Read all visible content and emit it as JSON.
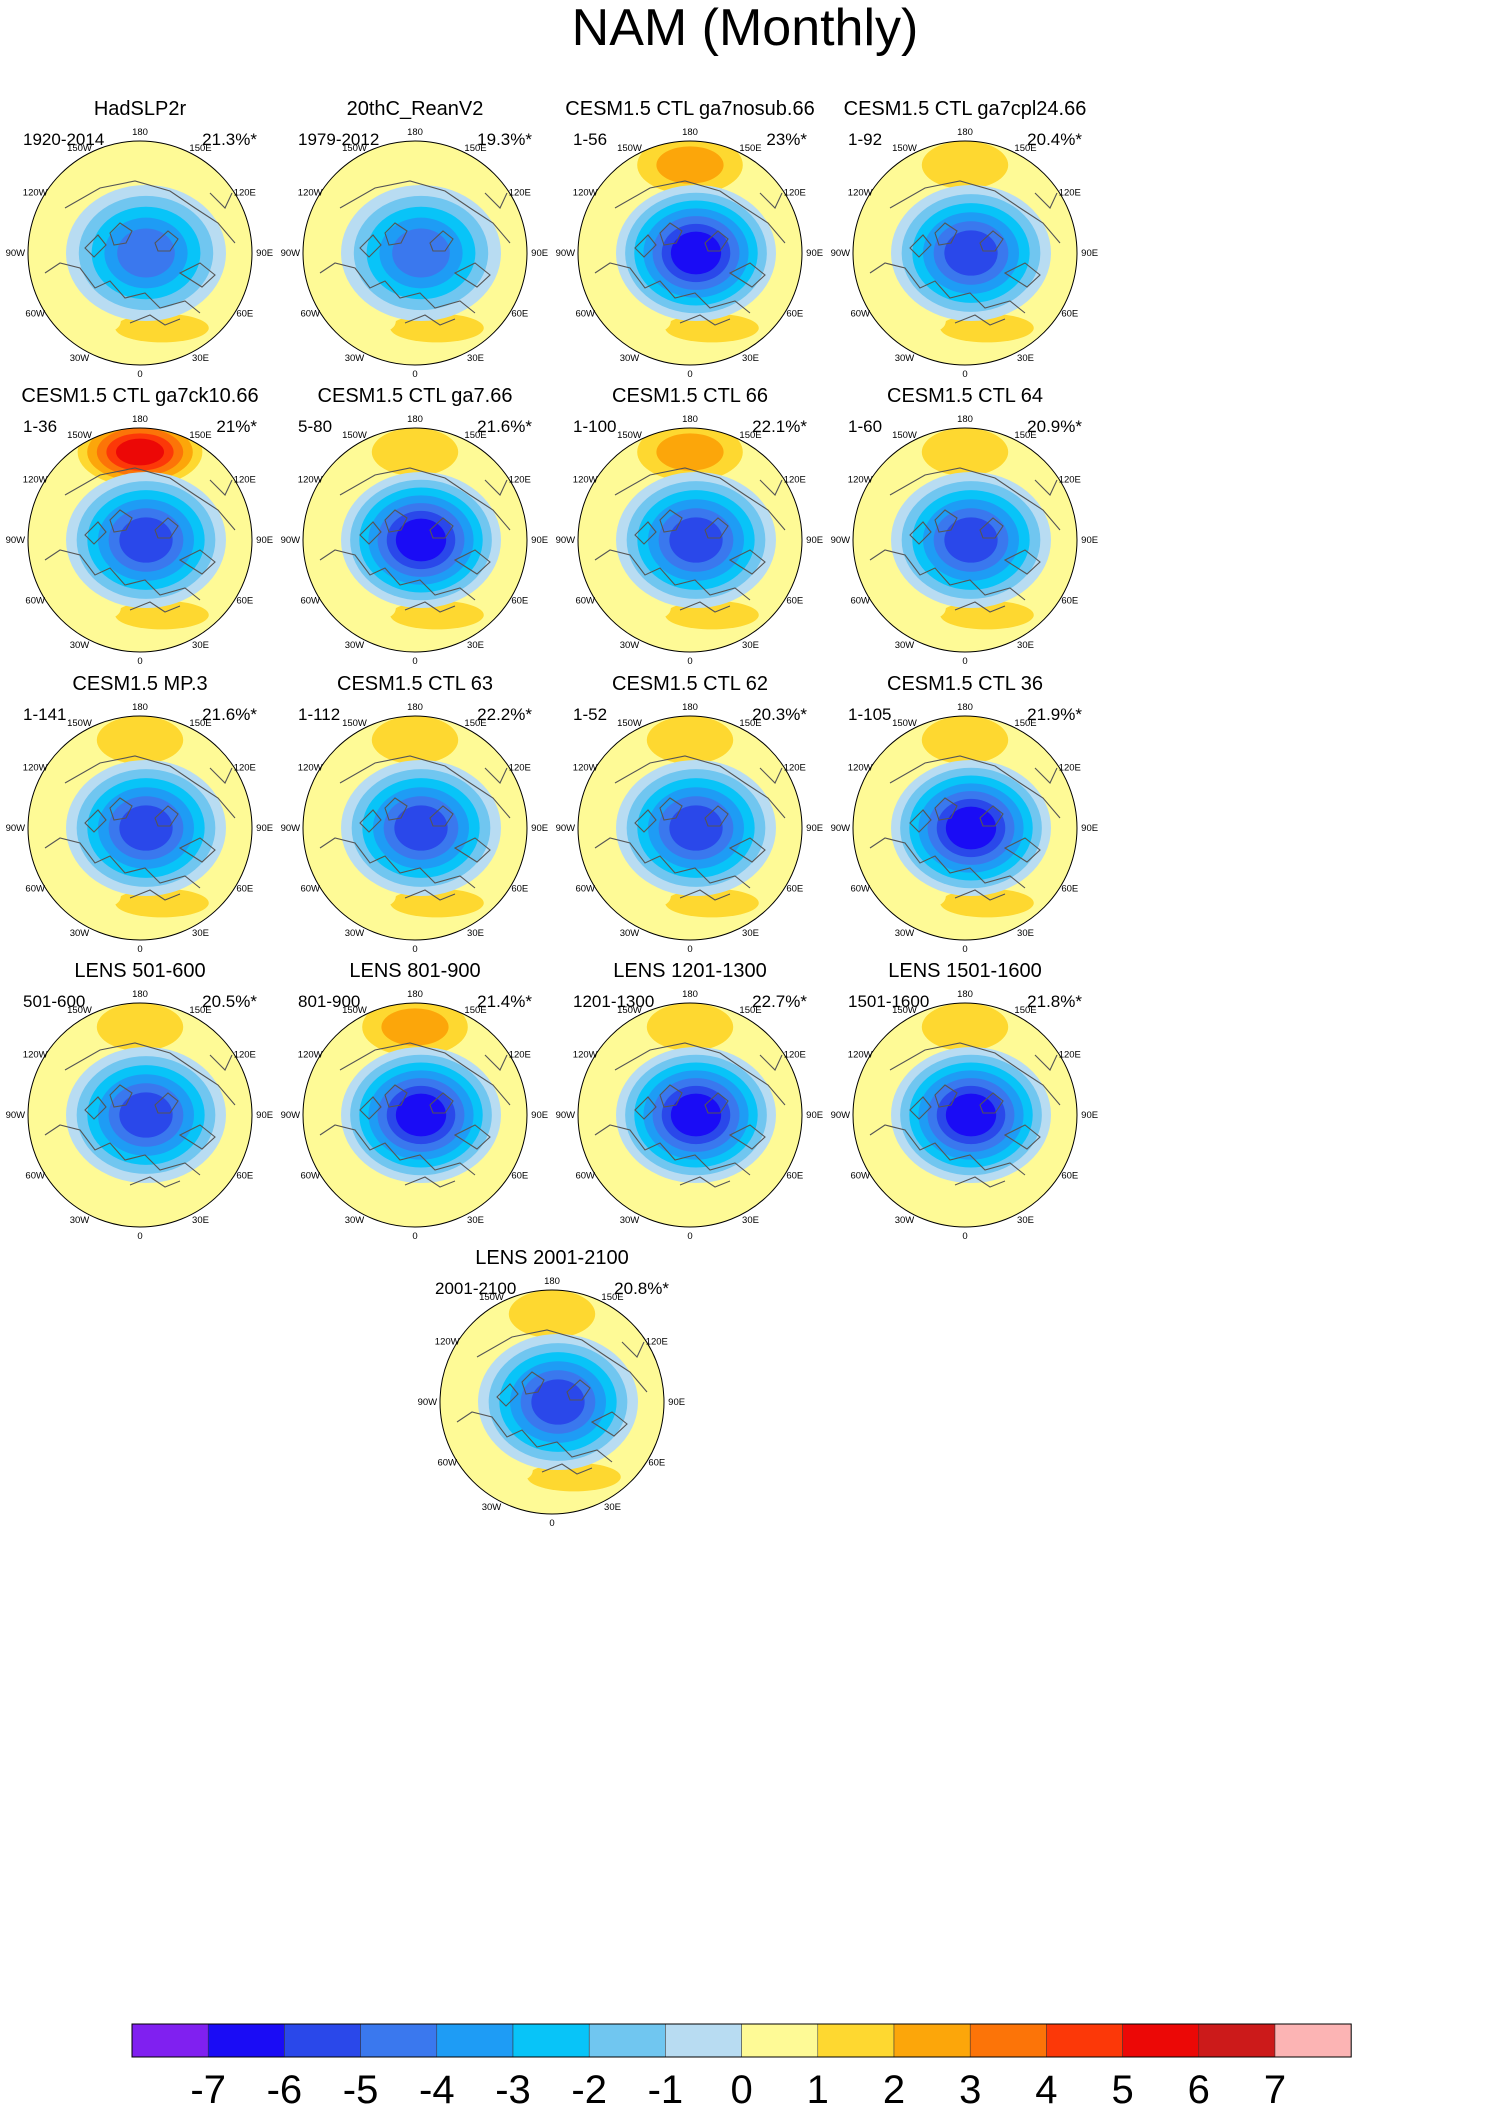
{
  "chart_data": {
    "type": "polar-contour-map",
    "title": "NAM (Monthly)",
    "projection": "North polar stereographic",
    "longitude_labels": [
      "180",
      "150E",
      "120E",
      "90E",
      "60E",
      "30E",
      "0",
      "30W",
      "60W",
      "90W",
      "120W",
      "150W"
    ],
    "colorbar": {
      "labels": [
        "-7",
        "-6",
        "-5",
        "-4",
        "-3",
        "-2",
        "-1",
        "0",
        "1",
        "2",
        "3",
        "4",
        "5",
        "6",
        "7"
      ],
      "colors": [
        "#8020f0",
        "#1a0cf5",
        "#2a48ea",
        "#3a78ee",
        "#1e9cf5",
        "#08c4f8",
        "#70c6f0",
        "#b8dcf2",
        "#fefa96",
        "#fed830",
        "#fca60a",
        "#fc7408",
        "#fc3808",
        "#ec0806",
        "#cc1a1a",
        "#fcb4b4"
      ]
    },
    "panels": [
      {
        "title": "HadSLP2r",
        "period": "1920-2014",
        "variance": "21.3%*",
        "pacific_high": 0,
        "atlantic_high": 2,
        "low": 4
      },
      {
        "title": "20thC_ReanV2",
        "period": "1979-2012",
        "variance": "19.3%*",
        "pacific_high": 1,
        "atlantic_high": 2,
        "low": 4
      },
      {
        "title": "CESM1.5 CTL ga7nosub.66",
        "period": "1-56",
        "variance": "23%*",
        "pacific_high": 3,
        "atlantic_high": 2,
        "low": 6
      },
      {
        "title": "CESM1.5 CTL ga7cpl24.66",
        "period": "1-92",
        "variance": "20.4%*",
        "pacific_high": 2,
        "atlantic_high": 2,
        "low": 5
      },
      {
        "title": "CESM1.5 CTL ga7ck10.66",
        "period": "1-36",
        "variance": "21%*",
        "pacific_high": 6,
        "atlantic_high": 2,
        "low": 5
      },
      {
        "title": "CESM1.5 CTL ga7.66",
        "period": "5-80",
        "variance": "21.6%*",
        "pacific_high": 2,
        "atlantic_high": 2,
        "low": 6
      },
      {
        "title": "CESM1.5 CTL 66",
        "period": "1-100",
        "variance": "22.1%*",
        "pacific_high": 3,
        "atlantic_high": 2,
        "low": 5
      },
      {
        "title": "CESM1.5 CTL 64",
        "period": "1-60",
        "variance": "20.9%*",
        "pacific_high": 2,
        "atlantic_high": 2,
        "low": 5
      },
      {
        "title": "CESM1.5 MP.3",
        "period": "1-141",
        "variance": "21.6%*",
        "pacific_high": 2,
        "atlantic_high": 2,
        "low": 5
      },
      {
        "title": "CESM1.5 CTL 63",
        "period": "1-112",
        "variance": "22.2%*",
        "pacific_high": 2,
        "atlantic_high": 2,
        "low": 5
      },
      {
        "title": "CESM1.5 CTL 62",
        "period": "1-52",
        "variance": "20.3%*",
        "pacific_high": 2,
        "atlantic_high": 2,
        "low": 5
      },
      {
        "title": "CESM1.5 CTL 36",
        "period": "1-105",
        "variance": "21.9%*",
        "pacific_high": 2,
        "atlantic_high": 2,
        "low": 6
      },
      {
        "title": "LENS 501-600",
        "period": "501-600",
        "variance": "20.5%*",
        "pacific_high": 2,
        "atlantic_high": 1,
        "low": 5
      },
      {
        "title": "LENS 801-900",
        "period": "801-900",
        "variance": "21.4%*",
        "pacific_high": 3,
        "atlantic_high": 1,
        "low": 6
      },
      {
        "title": "LENS 1201-1300",
        "period": "1201-1300",
        "variance": "22.7%*",
        "pacific_high": 2,
        "atlantic_high": 1,
        "low": 6
      },
      {
        "title": "LENS 1501-1600",
        "period": "1501-1600",
        "variance": "21.8%*",
        "pacific_high": 2,
        "atlantic_high": 1,
        "low": 6
      },
      {
        "title": "LENS 2001-2100",
        "period": "2001-2100",
        "variance": "20.8%*",
        "pacific_high": 2,
        "atlantic_high": 2,
        "low": 5
      }
    ]
  }
}
